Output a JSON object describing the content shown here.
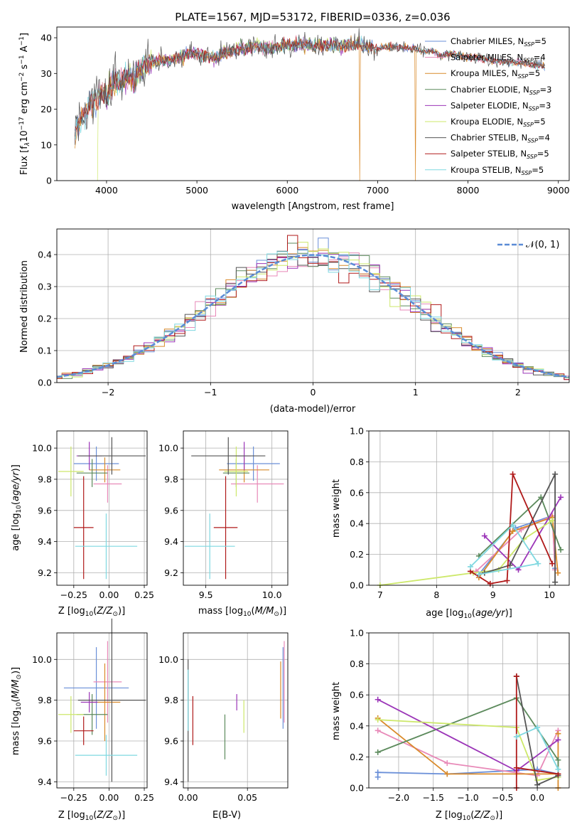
{
  "figure": {
    "title": "PLATE=1567, MJD=53172, FIBERID=0336, z=0.036",
    "model_colors": [
      "#6a8fd8",
      "#e889b8",
      "#d98a2a",
      "#5c8a5c",
      "#9b35b8",
      "#cde86a",
      "#555555",
      "#b01a1a",
      "#7fd8e0"
    ]
  },
  "chart_data": [
    {
      "id": "spectrum",
      "type": "line",
      "title": "PLATE=1567, MJD=53172, FIBERID=0336, z=0.036",
      "xlabel": "wavelength [Angstrom, rest frame]",
      "ylabel": "Flux [f_λ10^-17 erg cm^-2 s^-1 A^-1]",
      "xlim": [
        3450,
        9120
      ],
      "ylim": [
        0,
        43
      ],
      "xticks": [
        4000,
        5000,
        6000,
        7000,
        8000,
        9000
      ],
      "yticks": [
        0,
        10,
        20,
        30,
        40
      ],
      "grid": false,
      "legend": "right",
      "continuum": [
        [
          3650,
          13
        ],
        [
          3700,
          16
        ],
        [
          3750,
          18.5
        ],
        [
          3800,
          21
        ],
        [
          3850,
          22
        ],
        [
          3900,
          23
        ],
        [
          3950,
          25
        ],
        [
          4000,
          23
        ],
        [
          4050,
          27
        ],
        [
          4100,
          28.5
        ],
        [
          4150,
          27
        ],
        [
          4200,
          28.5
        ],
        [
          4250,
          29.5
        ],
        [
          4300,
          28
        ],
        [
          4400,
          32
        ],
        [
          4500,
          33
        ],
        [
          4600,
          34
        ],
        [
          4700,
          33.5
        ],
        [
          4800,
          34.5
        ],
        [
          4900,
          35.5
        ],
        [
          5000,
          35.5
        ],
        [
          5100,
          35
        ],
        [
          5200,
          34.5
        ],
        [
          5300,
          36
        ],
        [
          5400,
          36.5
        ],
        [
          5500,
          37
        ],
        [
          5600,
          37.5
        ],
        [
          5700,
          37.5
        ],
        [
          5800,
          37
        ],
        [
          5900,
          37.5
        ],
        [
          6000,
          38
        ],
        [
          6100,
          38
        ],
        [
          6200,
          38
        ],
        [
          6300,
          37.5
        ],
        [
          6400,
          38
        ],
        [
          6500,
          38
        ],
        [
          6600,
          37.5
        ],
        [
          6700,
          38
        ],
        [
          6800,
          38.5
        ],
        [
          6900,
          37.5
        ],
        [
          7000,
          37
        ],
        [
          7100,
          37.5
        ],
        [
          7200,
          37.5
        ],
        [
          7300,
          37
        ],
        [
          7400,
          37
        ],
        [
          7500,
          36
        ],
        [
          7600,
          36.5
        ],
        [
          7700,
          35
        ],
        [
          7800,
          35.5
        ],
        [
          7900,
          35
        ],
        [
          8000,
          34.5
        ],
        [
          8100,
          34.5
        ],
        [
          8200,
          34
        ],
        [
          8300,
          33.5
        ],
        [
          8400,
          33.5
        ],
        [
          8500,
          33
        ],
        [
          8600,
          33
        ],
        [
          8700,
          32.5
        ],
        [
          8850,
          32
        ]
      ],
      "series": [
        {
          "name": "Chabrier MILES, N_SSP=5",
          "color": "#6a8fd8",
          "x_range": [
            3650,
            8850
          ]
        },
        {
          "name": "Salpeter MILES, N_SSP=4",
          "color": "#e889b8",
          "x_range": [
            3650,
            8850
          ]
        },
        {
          "name": "Kroupa MILES, N_SSP=5",
          "color": "#d98a2a",
          "x_range": [
            3650,
            8850
          ],
          "drops": [
            6800,
            7420
          ]
        },
        {
          "name": "Chabrier ELODIE, N_SSP=3",
          "color": "#5c8a5c",
          "x_range": [
            3900,
            6800
          ]
        },
        {
          "name": "Salpeter ELODIE, N_SSP=3",
          "color": "#9b35b8",
          "x_range": [
            3900,
            6800
          ]
        },
        {
          "name": "Kroupa ELODIE, N_SSP=5",
          "color": "#cde86a",
          "x_range": [
            3900,
            6800
          ],
          "drops": [
            3900
          ]
        },
        {
          "name": "Chabrier STELIB, N_SSP=4",
          "color": "#555555",
          "x_range": [
            3650,
            8850
          ]
        },
        {
          "name": "Salpeter STELIB, N_SSP=5",
          "color": "#b01a1a",
          "x_range": [
            3650,
            8850
          ]
        },
        {
          "name": "Kroupa STELIB, N_SSP=5",
          "color": "#7fd8e0",
          "x_range": [
            3650,
            8850
          ]
        }
      ]
    },
    {
      "id": "residuals",
      "type": "line",
      "xlabel": "(data-model)/error",
      "ylabel": "Normed distribution",
      "xlim": [
        -2.5,
        2.5
      ],
      "ylim": [
        0,
        0.48
      ],
      "xticks": [
        -2,
        -1,
        0,
        1,
        2
      ],
      "yticks": [
        0.0,
        0.1,
        0.2,
        0.3,
        0.4
      ],
      "grid": true,
      "legend": "top-right",
      "normal_label": "𝒩(0, 1)",
      "normal_color": "#5b8bd6",
      "bin_width": 0.1
    },
    {
      "id": "age-vs-Z",
      "type": "scatter",
      "xlabel": "Z [log10(Z/Z⊙)]",
      "ylabel": "age  [log10(age/yr)]",
      "xlim": [
        -0.37,
        0.27
      ],
      "ylim": [
        9.12,
        10.11
      ],
      "xticks": [
        -0.25,
        0.0,
        0.25
      ],
      "yticks": [
        9.2,
        9.4,
        9.6,
        9.8,
        10.0
      ],
      "grid": true,
      "points": [
        {
          "x": -0.09,
          "xerr": 0.16,
          "y": 9.9,
          "yerr": 0.11,
          "color": "#6a8fd8"
        },
        {
          "x": -0.01,
          "xerr": 0.1,
          "y": 9.77,
          "yerr": 0.12,
          "color": "#e889b8"
        },
        {
          "x": -0.03,
          "xerr": 0.11,
          "y": 9.86,
          "yerr": 0.08,
          "color": "#d98a2a"
        },
        {
          "x": -0.12,
          "xerr": 0.11,
          "y": 9.84,
          "yerr": 0.09,
          "color": "#5c8a5c"
        },
        {
          "x": -0.14,
          "xerr": 0.09,
          "y": 9.95,
          "yerr": 0.09,
          "color": "#9b35b8"
        },
        {
          "x": -0.27,
          "xerr": 0.09,
          "y": 9.85,
          "yerr": 0.16,
          "color": "#cde86a"
        },
        {
          "x": 0.02,
          "xerr": 0.24,
          "y": 9.95,
          "yerr": 0.12,
          "color": "#555555"
        },
        {
          "x": -0.18,
          "xerr": 0.07,
          "y": 9.49,
          "yerr": 0.33,
          "color": "#b01a1a"
        },
        {
          "x": -0.02,
          "xerr": 0.22,
          "y": 9.37,
          "yerr": 0.21,
          "color": "#7fd8e0"
        }
      ]
    },
    {
      "id": "age-vs-mass",
      "type": "scatter",
      "xlabel": "mass [log10(M/M⊙)]",
      "ylabel": "",
      "xlim": [
        9.33,
        10.12
      ],
      "ylim": [
        9.12,
        10.11
      ],
      "xticks": [
        9.5,
        10.0
      ],
      "yticks": [
        9.2,
        9.4,
        9.6,
        9.8,
        10.0
      ],
      "grid": true,
      "points": [
        {
          "x": 9.86,
          "xerr": 0.2,
          "y": 9.9,
          "yerr": 0.11,
          "color": "#6a8fd8"
        },
        {
          "x": 9.89,
          "xerr": 0.2,
          "y": 9.77,
          "yerr": 0.12,
          "color": "#e889b8"
        },
        {
          "x": 9.79,
          "xerr": 0.19,
          "y": 9.86,
          "yerr": 0.08,
          "color": "#d98a2a"
        },
        {
          "x": 9.73,
          "xerr": 0.1,
          "y": 9.84,
          "yerr": 0.09,
          "color": "#5c8a5c"
        },
        {
          "x": 9.79,
          "xerr": 0.05,
          "y": 9.95,
          "yerr": 0.09,
          "color": "#9b35b8"
        },
        {
          "x": 9.73,
          "xerr": 0.09,
          "y": 9.85,
          "yerr": 0.16,
          "color": "#cde86a"
        },
        {
          "x": 9.67,
          "xerr": 0.28,
          "y": 9.95,
          "yerr": 0.12,
          "color": "#555555"
        },
        {
          "x": 9.65,
          "xerr": 0.09,
          "y": 9.49,
          "yerr": 0.33,
          "color": "#b01a1a"
        },
        {
          "x": 9.53,
          "xerr": 0.19,
          "y": 9.37,
          "yerr": 0.21,
          "color": "#7fd8e0"
        }
      ]
    },
    {
      "id": "weight-vs-age",
      "type": "line",
      "xlabel": "age  [log10(age/yr)]",
      "ylabel": "mass weight",
      "xlim": [
        6.8,
        10.35
      ],
      "ylim": [
        0,
        1.0
      ],
      "xticks": [
        7,
        8,
        9,
        10
      ],
      "yticks": [
        0.0,
        0.2,
        0.4,
        0.6,
        0.8,
        1.0
      ],
      "grid": true,
      "series": [
        {
          "color": "#6a8fd8",
          "points": [
            [
              8.75,
              0.07
            ],
            [
              9.4,
              0.37
            ],
            [
              10.05,
              0.45
            ],
            [
              10.1,
              0.11
            ]
          ]
        },
        {
          "color": "#e889b8",
          "points": [
            [
              8.7,
              0.09
            ],
            [
              9.5,
              0.36
            ],
            [
              10.05,
              0.45
            ],
            [
              10.1,
              0.1
            ]
          ]
        },
        {
          "color": "#d98a2a",
          "points": [
            [
              8.75,
              0.05
            ],
            [
              9.35,
              0.35
            ],
            [
              10.05,
              0.44
            ],
            [
              10.15,
              0.08
            ]
          ]
        },
        {
          "color": "#5c8a5c",
          "points": [
            [
              8.75,
              0.19
            ],
            [
              9.85,
              0.57
            ],
            [
              10.2,
              0.23
            ]
          ]
        },
        {
          "color": "#9b35b8",
          "points": [
            [
              8.85,
              0.32
            ],
            [
              9.45,
              0.1
            ],
            [
              10.2,
              0.57
            ]
          ]
        },
        {
          "color": "#cde86a",
          "points": [
            [
              7.0,
              0.0
            ],
            [
              8.65,
              0.08
            ],
            [
              9.1,
              0.1
            ],
            [
              9.55,
              0.3
            ],
            [
              10.05,
              0.42
            ]
          ]
        },
        {
          "color": "#555555",
          "points": [
            [
              8.85,
              0.08
            ],
            [
              9.3,
              0.13
            ],
            [
              10.1,
              0.72
            ],
            [
              10.1,
              0.02
            ]
          ]
        },
        {
          "color": "#b01a1a",
          "points": [
            [
              8.6,
              0.09
            ],
            [
              8.95,
              0.01
            ],
            [
              9.25,
              0.03
            ],
            [
              9.35,
              0.72
            ],
            [
              10.05,
              0.14
            ]
          ]
        },
        {
          "color": "#7fd8e0",
          "points": [
            [
              8.6,
              0.12
            ],
            [
              9.35,
              0.39
            ],
            [
              9.8,
              0.14
            ],
            [
              8.75,
              0.07
            ]
          ]
        }
      ]
    },
    {
      "id": "mass-vs-Z",
      "type": "scatter",
      "xlabel": "Z [log10(Z/Z⊙)]",
      "ylabel": "mass [log10(M/M⊙)]",
      "xlim": [
        -0.37,
        0.27
      ],
      "ylim": [
        9.37,
        10.13
      ],
      "xticks": [
        -0.25,
        0.0,
        0.25
      ],
      "yticks": [
        9.4,
        9.6,
        9.8,
        10.0
      ],
      "grid": true,
      "points": [
        {
          "x": -0.09,
          "xerr": 0.23,
          "y": 9.86,
          "yerr": 0.2,
          "color": "#6a8fd8"
        },
        {
          "x": -0.01,
          "xerr": 0.1,
          "y": 9.89,
          "yerr": 0.2,
          "color": "#e889b8"
        },
        {
          "x": -0.03,
          "xerr": 0.11,
          "y": 9.79,
          "yerr": 0.19,
          "color": "#d98a2a"
        },
        {
          "x": -0.12,
          "xerr": 0.11,
          "y": 9.73,
          "yerr": 0.1,
          "color": "#5c8a5c"
        },
        {
          "x": -0.14,
          "xerr": 0.06,
          "y": 9.79,
          "yerr": 0.05,
          "color": "#9b35b8"
        },
        {
          "x": -0.27,
          "xerr": 0.09,
          "y": 9.73,
          "yerr": 0.09,
          "color": "#cde86a"
        },
        {
          "x": 0.02,
          "xerr": 0.24,
          "y": 9.8,
          "yerr": 0.4,
          "color": "#555555"
        },
        {
          "x": -0.18,
          "xerr": 0.07,
          "y": 9.65,
          "yerr": 0.07,
          "color": "#b01a1a"
        },
        {
          "x": -0.02,
          "xerr": 0.22,
          "y": 9.53,
          "yerr": 0.1,
          "color": "#7fd8e0"
        }
      ]
    },
    {
      "id": "mass-vs-ebv",
      "type": "scatter",
      "xlabel": "E(B-V)",
      "ylabel": "",
      "xlim": [
        -0.004,
        0.084
      ],
      "ylim": [
        9.37,
        10.13
      ],
      "xticks": [
        0.0,
        0.05
      ],
      "yticks": [
        9.4,
        9.6,
        9.8,
        10.0
      ],
      "grid": true,
      "points": [
        {
          "x": 0.08,
          "y": 9.86,
          "yerr": 0.2,
          "color": "#6a8fd8"
        },
        {
          "x": 0.081,
          "y": 9.89,
          "yerr": 0.2,
          "color": "#e889b8"
        },
        {
          "x": 0.078,
          "y": 9.85,
          "yerr": 0.14,
          "color": "#d98a2a"
        },
        {
          "x": 0.031,
          "y": 9.62,
          "yerr": 0.11,
          "color": "#5c8a5c"
        },
        {
          "x": 0.041,
          "y": 9.79,
          "yerr": 0.04,
          "color": "#9b35b8"
        },
        {
          "x": 0.047,
          "y": 9.72,
          "yerr": 0.08,
          "color": "#cde86a"
        },
        {
          "x": 0.0,
          "y": 9.7,
          "yerr": 0.3,
          "color": "#555555"
        },
        {
          "x": 0.004,
          "y": 9.7,
          "yerr": 0.12,
          "color": "#b01a1a"
        },
        {
          "x": 0.0,
          "y": 9.8,
          "yerr": 0.15,
          "color": "#7fd8e0"
        }
      ]
    },
    {
      "id": "weight-vs-Z",
      "type": "line",
      "xlabel": "Z [log10(Z/Z⊙)]",
      "ylabel": "mass weight",
      "xlim": [
        -2.43,
        0.46
      ],
      "ylim": [
        0,
        1.0
      ],
      "xticks": [
        -2.0,
        -1.5,
        -1.0,
        -0.5,
        0.0
      ],
      "yticks": [
        0.0,
        0.2,
        0.4,
        0.6,
        0.8,
        1.0
      ],
      "grid": true,
      "series": [
        {
          "color": "#6a8fd8",
          "points": [
            [
              -2.3,
              0.07
            ],
            [
              -2.3,
              0.1
            ],
            [
              -1.3,
              0.09
            ],
            [
              0.0,
              0.12
            ],
            [
              0.3,
              0.09
            ]
          ]
        },
        {
          "color": "#e889b8",
          "points": [
            [
              -2.3,
              0.37
            ],
            [
              -1.3,
              0.16
            ],
            [
              0.0,
              0.08
            ],
            [
              0.3,
              0.37
            ]
          ]
        },
        {
          "color": "#d98a2a",
          "points": [
            [
              -2.3,
              0.45
            ],
            [
              -1.3,
              0.09
            ],
            [
              -0.3,
              0.09
            ],
            [
              0.3,
              0.09
            ],
            [
              0.3,
              0.35
            ],
            [
              0.3,
              0.0
            ]
          ]
        },
        {
          "color": "#5c8a5c",
          "points": [
            [
              -2.3,
              0.23
            ],
            [
              -0.3,
              0.58
            ],
            [
              0.3,
              0.18
            ],
            [
              0.3,
              0.07
            ]
          ]
        },
        {
          "color": "#9b35b8",
          "points": [
            [
              -2.3,
              0.57
            ],
            [
              -0.3,
              0.11
            ],
            [
              0.3,
              0.31
            ]
          ]
        },
        {
          "color": "#cde86a",
          "points": [
            [
              -2.3,
              0.44
            ],
            [
              -0.3,
              0.39
            ],
            [
              0.0,
              0.05
            ],
            [
              0.3,
              0.07
            ]
          ]
        },
        {
          "color": "#555555",
          "points": [
            [
              -0.3,
              0.72
            ],
            [
              0.0,
              0.02
            ],
            [
              0.3,
              0.08
            ]
          ]
        },
        {
          "color": "#b01a1a",
          "points": [
            [
              -0.3,
              0.72
            ],
            [
              -0.3,
              0.0
            ],
            [
              -0.3,
              0.13
            ],
            [
              0.3,
              0.09
            ]
          ]
        },
        {
          "color": "#7fd8e0",
          "points": [
            [
              -0.3,
              0.33
            ],
            [
              0.0,
              0.39
            ],
            [
              0.3,
              0.12
            ]
          ]
        }
      ]
    }
  ]
}
